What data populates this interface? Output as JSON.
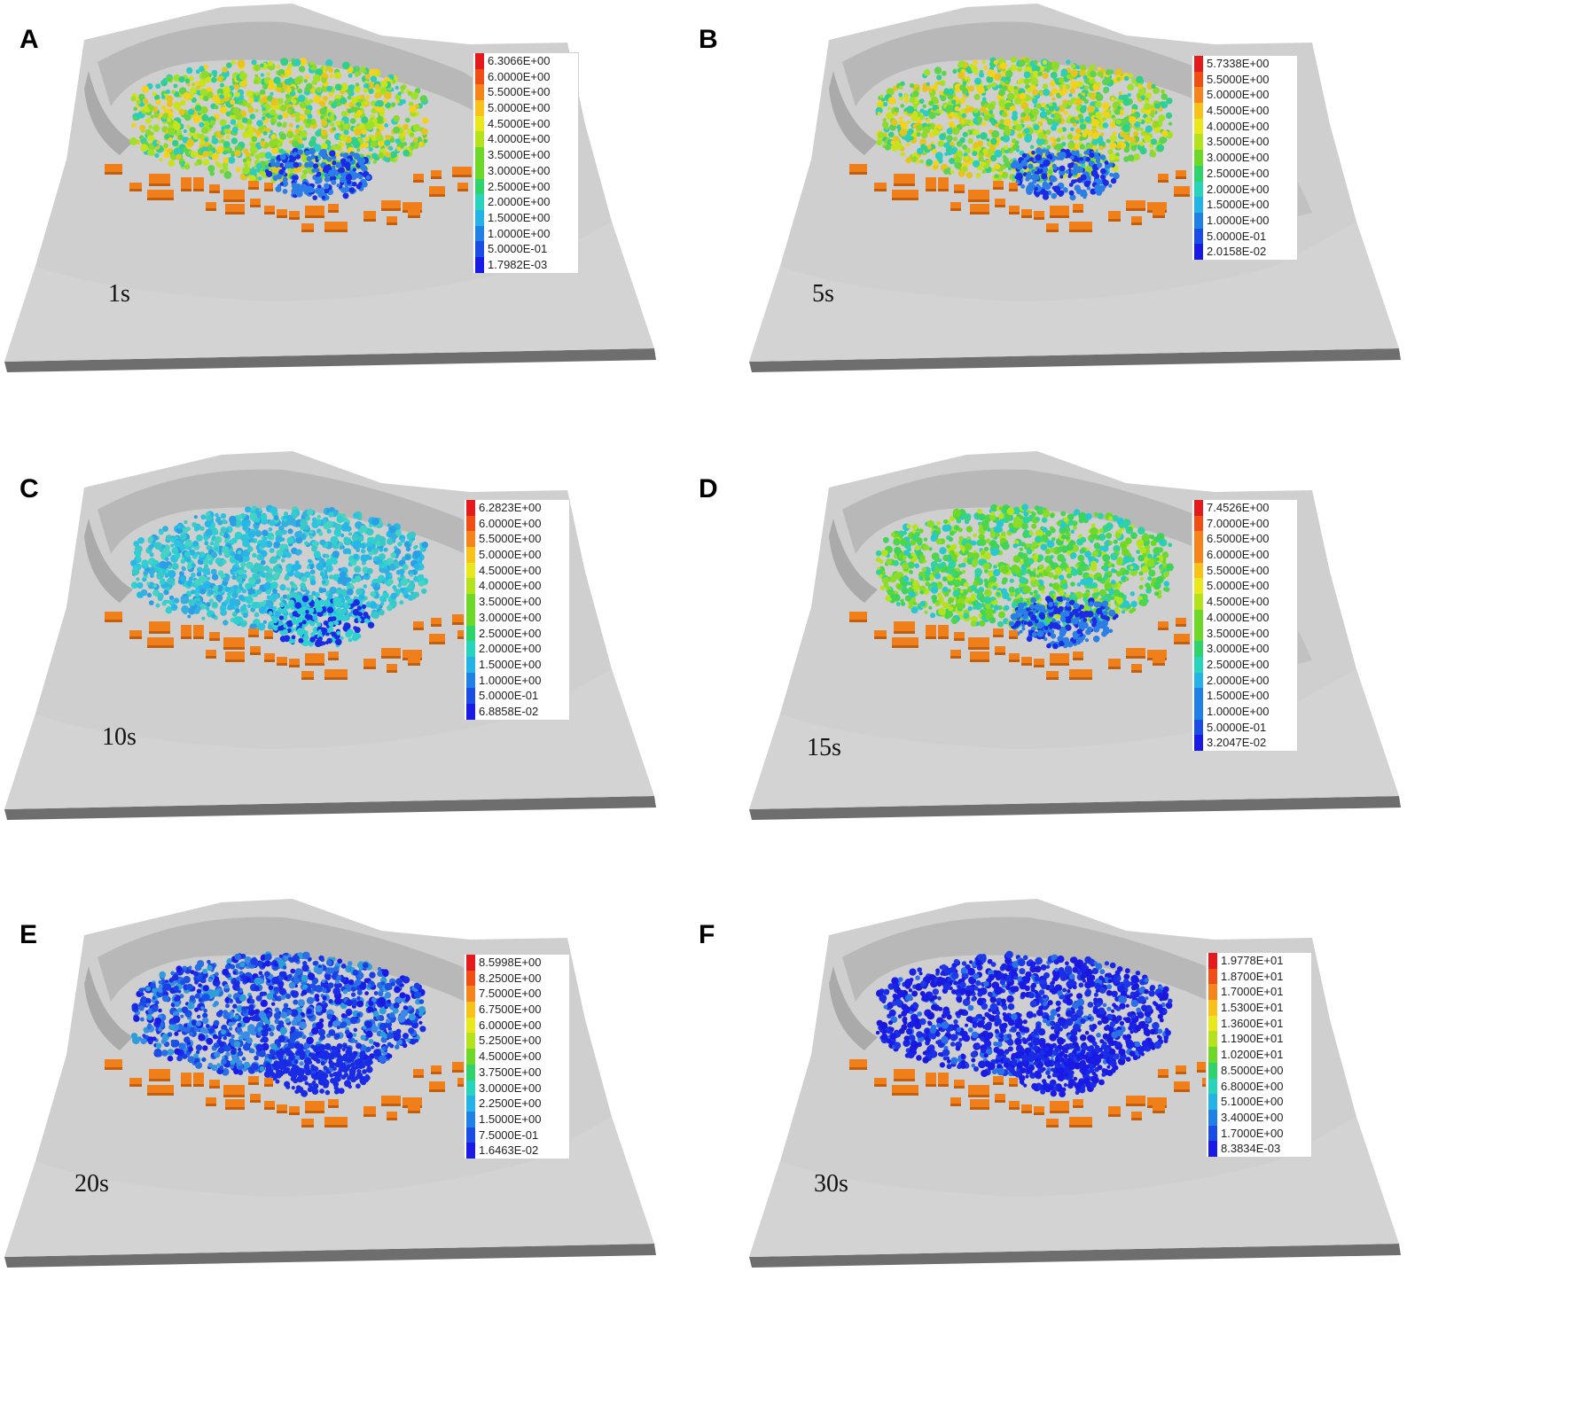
{
  "legend_palette": [
    "#e41a1c",
    "#f04e14",
    "#f7841a",
    "#f9c21a",
    "#e8e81c",
    "#b4e21c",
    "#6ed829",
    "#2fd36b",
    "#29d4bd",
    "#23b3e6",
    "#1f80e6",
    "#1a4de6",
    "#1a1ae6"
  ],
  "terrain_color": "#cfcfcf",
  "building_color": "#f07f1a",
  "panels": [
    {
      "letter": "A",
      "time": "1s",
      "palette_tone": "warm",
      "legend": [
        "6.3066E+00",
        "6.0000E+00",
        "5.5000E+00",
        "5.0000E+00",
        "4.5000E+00",
        "4.0000E+00",
        "3.5000E+00",
        "3.0000E+00",
        "2.5000E+00",
        "2.0000E+00",
        "1.5000E+00",
        "1.0000E+00",
        "5.0000E-01",
        "1.7982E-03"
      ]
    },
    {
      "letter": "B",
      "time": "5s",
      "palette_tone": "warm",
      "legend": [
        "5.7338E+00",
        "5.5000E+00",
        "5.0000E+00",
        "4.5000E+00",
        "4.0000E+00",
        "3.5000E+00",
        "3.0000E+00",
        "2.5000E+00",
        "2.0000E+00",
        "1.5000E+00",
        "1.0000E+00",
        "5.0000E-01",
        "2.0158E-02"
      ]
    },
    {
      "letter": "C",
      "time": "10s",
      "palette_tone": "cyan",
      "legend": [
        "6.2823E+00",
        "6.0000E+00",
        "5.5000E+00",
        "5.0000E+00",
        "4.5000E+00",
        "4.0000E+00",
        "3.5000E+00",
        "3.0000E+00",
        "2.5000E+00",
        "2.0000E+00",
        "1.5000E+00",
        "1.0000E+00",
        "5.0000E-01",
        "6.8858E-02"
      ]
    },
    {
      "letter": "D",
      "time": "15s",
      "palette_tone": "green",
      "legend": [
        "7.4526E+00",
        "7.0000E+00",
        "6.5000E+00",
        "6.0000E+00",
        "5.5000E+00",
        "5.0000E+00",
        "4.5000E+00",
        "4.0000E+00",
        "3.5000E+00",
        "3.0000E+00",
        "2.5000E+00",
        "2.0000E+00",
        "1.5000E+00",
        "1.0000E+00",
        "5.0000E-01",
        "3.2047E-02"
      ]
    },
    {
      "letter": "E",
      "time": "20s",
      "palette_tone": "blue",
      "legend": [
        "8.5998E+00",
        "8.2500E+00",
        "7.5000E+00",
        "6.7500E+00",
        "6.0000E+00",
        "5.2500E+00",
        "4.5000E+00",
        "3.7500E+00",
        "3.0000E+00",
        "2.2500E+00",
        "1.5000E+00",
        "7.5000E-01",
        "1.6463E-02"
      ]
    },
    {
      "letter": "F",
      "time": "30s",
      "palette_tone": "deepblue",
      "legend": [
        "1.9778E+01",
        "1.8700E+01",
        "1.7000E+01",
        "1.5300E+01",
        "1.3600E+01",
        "1.1900E+01",
        "1.0200E+01",
        "8.5000E+00",
        "6.8000E+00",
        "5.1000E+00",
        "3.4000E+00",
        "1.7000E+00",
        "8.3834E-03"
      ]
    }
  ]
}
